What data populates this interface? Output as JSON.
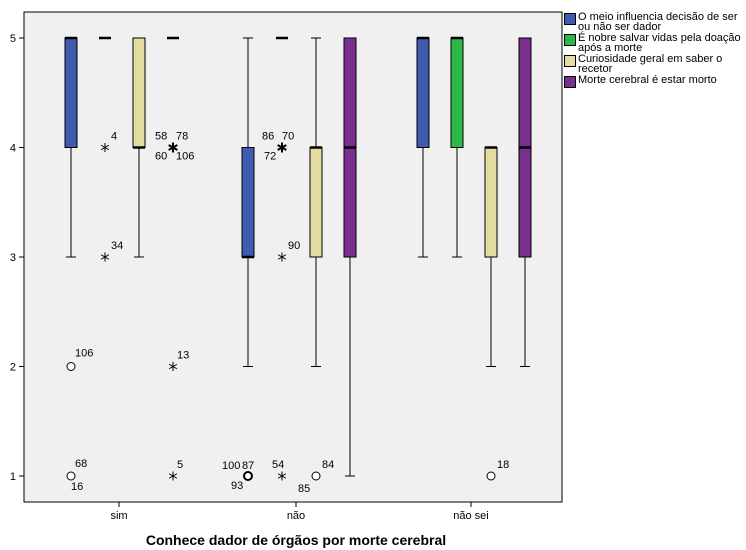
{
  "chart_data": {
    "type": "boxplot",
    "title": "",
    "xlabel": "Conhece dador de órgãos por morte cerebral",
    "ylabel": "",
    "ylim": [
      0.8,
      5.2
    ],
    "yticks": [
      1,
      2,
      3,
      4,
      5
    ],
    "categories": [
      "sim",
      "não",
      "não sei"
    ],
    "legend_position": "top-right",
    "series": [
      {
        "name": "O meio influencia decisão de ser ou não ser dador",
        "color": "#3e5bb0",
        "boxes": [
          {
            "whisker_low": 3,
            "q1": 4,
            "median": 5,
            "q3": 5,
            "whisker_high": 5,
            "outliers": [
              {
                "value": 2,
                "marker": "circle",
                "labels": [
                  "106"
                ]
              },
              {
                "value": 1,
                "marker": "circle",
                "labels": [
                  "68",
                  "16"
                ]
              }
            ]
          },
          {
            "whisker_low": 2,
            "q1": 3,
            "median": 3,
            "q3": 4,
            "whisker_high": 5,
            "outliers": [
              {
                "value": 1,
                "marker": "circle",
                "labels": [
                  "100",
                  "87",
                  "93"
                ]
              }
            ]
          },
          {
            "whisker_low": 3,
            "q1": 4,
            "median": 5,
            "q3": 5,
            "whisker_high": 5,
            "outliers": []
          }
        ]
      },
      {
        "name": "É nobre salvar vidas pela doação após a morte",
        "color": "#2db84a",
        "boxes": [
          {
            "whisker_low": 5,
            "q1": 5,
            "median": 5,
            "q3": 5,
            "whisker_high": 5,
            "outliers": [
              {
                "value": 4,
                "marker": "star",
                "labels": [
                  "4"
                ]
              },
              {
                "value": 3,
                "marker": "star",
                "labels": [
                  "34"
                ]
              }
            ]
          },
          {
            "whisker_low": 5,
            "q1": 5,
            "median": 5,
            "q3": 5,
            "whisker_high": 5,
            "outliers": [
              {
                "value": 4,
                "marker": "star",
                "labels": [
                  "86",
                  "70",
                  "72"
                ]
              },
              {
                "value": 3,
                "marker": "star",
                "labels": [
                  "90"
                ]
              },
              {
                "value": 1,
                "marker": "star",
                "labels": [
                  "54",
                  "85"
                ]
              }
            ]
          },
          {
            "whisker_low": 3,
            "q1": 4,
            "median": 5,
            "q3": 5,
            "whisker_high": 5,
            "outliers": []
          }
        ]
      },
      {
        "name": "Curiosidade geral em saber o recetor",
        "color": "#e4dca0",
        "boxes": [
          {
            "whisker_low": 3,
            "q1": 4,
            "median": 4,
            "q3": 5,
            "whisker_high": 5,
            "outliers": []
          },
          {
            "whisker_low": 2,
            "q1": 3,
            "median": 4,
            "q3": 4,
            "whisker_high": 5,
            "outliers": [
              {
                "value": 1,
                "marker": "circle",
                "labels": [
                  "84"
                ]
              }
            ]
          },
          {
            "whisker_low": 2,
            "q1": 3,
            "median": 4,
            "q3": 4,
            "whisker_high": 4,
            "outliers": [
              {
                "value": 1,
                "marker": "circle",
                "labels": [
                  "18"
                ]
              }
            ]
          }
        ]
      },
      {
        "name": "Morte cerebral é estar morto",
        "color": "#7a2e8e",
        "boxes": [
          {
            "whisker_low": 5,
            "q1": 5,
            "median": 5,
            "q3": 5,
            "whisker_high": 5,
            "outliers": [
              {
                "value": 4,
                "marker": "star",
                "labels": [
                  "58",
                  "78",
                  "60",
                  "106"
                ]
              },
              {
                "value": 2,
                "marker": "star",
                "labels": [
                  "13"
                ]
              },
              {
                "value": 1,
                "marker": "star",
                "labels": [
                  "5"
                ]
              }
            ]
          },
          {
            "whisker_low": 1,
            "q1": 3,
            "median": 4,
            "q3": 5,
            "whisker_high": 5,
            "outliers": []
          },
          {
            "whisker_low": 2,
            "q1": 3,
            "median": 4,
            "q3": 5,
            "whisker_high": 5,
            "outliers": []
          }
        ]
      }
    ]
  }
}
